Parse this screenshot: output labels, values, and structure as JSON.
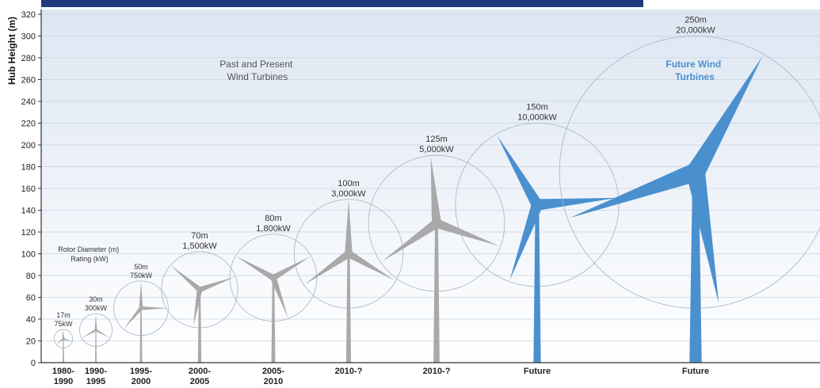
{
  "chart_data": {
    "type": "scatter",
    "ylabel": "Hub Height (m)",
    "ylim": [
      0,
      320
    ],
    "yticks": [
      0,
      20,
      40,
      60,
      80,
      100,
      120,
      140,
      160,
      180,
      200,
      220,
      240,
      260,
      280,
      300,
      320
    ],
    "grid": true,
    "annotations": {
      "past_present": [
        "Past and Present",
        "Wind Turbines"
      ],
      "future": [
        "Future Wind",
        "Turbines"
      ],
      "legend_key": [
        "Rotor Diameter (m)",
        "Rating (kW)"
      ]
    },
    "colors": {
      "past": "#a9a9a9",
      "future": "#4a90cf",
      "future_text": "#4a90cf",
      "bands": [
        "#dde6f2",
        "#ffffff"
      ]
    },
    "turbines": [
      {
        "era": [
          "1980-",
          "1990"
        ],
        "diameter_label": "17m",
        "rating_label": "75kW",
        "hub_height": 22,
        "rotor_diameter": 17,
        "rating_kw": 75,
        "future": false
      },
      {
        "era": [
          "1990-",
          "1995"
        ],
        "diameter_label": "30m",
        "rating_label": "300kW",
        "hub_height": 30,
        "rotor_diameter": 30,
        "rating_kw": 300,
        "future": false
      },
      {
        "era": [
          "1995-",
          "2000"
        ],
        "diameter_label": "50m",
        "rating_label": "750kW",
        "hub_height": 50,
        "rotor_diameter": 50,
        "rating_kw": 750,
        "future": false
      },
      {
        "era": [
          "2000-",
          "2005"
        ],
        "diameter_label": "70m",
        "rating_label": "1,500kW",
        "hub_height": 67,
        "rotor_diameter": 70,
        "rating_kw": 1500,
        "future": false
      },
      {
        "era": [
          "2005-",
          "2010"
        ],
        "diameter_label": "80m",
        "rating_label": "1,800kW",
        "hub_height": 78,
        "rotor_diameter": 80,
        "rating_kw": 1800,
        "future": false
      },
      {
        "era": [
          "2010-?"
        ],
        "diameter_label": "100m",
        "rating_label": "3,000kW",
        "hub_height": 100,
        "rotor_diameter": 100,
        "rating_kw": 3000,
        "future": false
      },
      {
        "era": [
          "2010-?"
        ],
        "diameter_label": "125m",
        "rating_label": "5,000kW",
        "hub_height": 128,
        "rotor_diameter": 125,
        "rating_kw": 5000,
        "future": false
      },
      {
        "era": [
          "Future"
        ],
        "diameter_label": "150m",
        "rating_label": "10,000kW",
        "hub_height": 145,
        "rotor_diameter": 150,
        "rating_kw": 10000,
        "future": true
      },
      {
        "era": [
          "Future"
        ],
        "diameter_label": "250m",
        "rating_label": "20,000kW",
        "hub_height": 175,
        "rotor_diameter": 250,
        "rating_kw": 20000,
        "future": true
      }
    ]
  }
}
